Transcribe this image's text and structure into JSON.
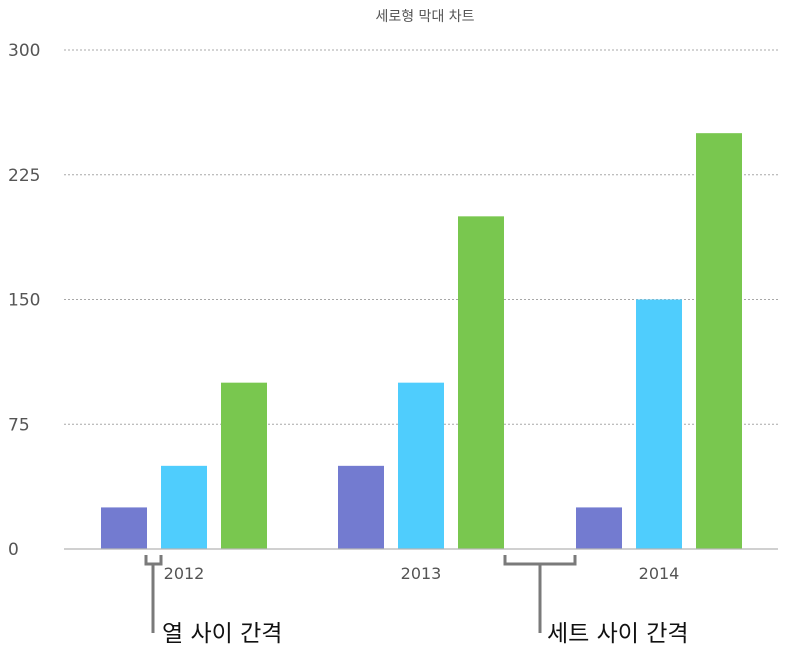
{
  "chart_data": {
    "type": "bar",
    "title": "세로형 막대 차트",
    "categories": [
      "2012",
      "2013",
      "2014"
    ],
    "series": [
      {
        "values": [
          25,
          50,
          25
        ],
        "color": "#737bd0"
      },
      {
        "values": [
          50,
          100,
          150
        ],
        "color": "#4fcdfd"
      },
      {
        "values": [
          100,
          200,
          250
        ],
        "color": "#79c74f"
      }
    ],
    "ylim": [
      0,
      300
    ],
    "yticks": [
      "0",
      "75",
      "150",
      "225",
      "300"
    ],
    "grid": true,
    "annotations": {
      "column_gap": "열 사이 간격",
      "set_gap": "세트 사이 간격"
    }
  }
}
